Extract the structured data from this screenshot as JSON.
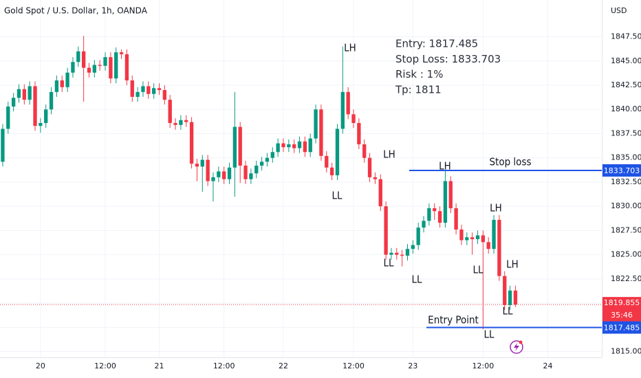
{
  "chart_data": {
    "type": "candlestick",
    "title": "Gold Spot / U.S. Dollar, 1h, OANDA",
    "currency": "USD",
    "up_color": "#089981",
    "down_color": "#f23645",
    "grid": true,
    "x": [
      0,
      1,
      2,
      3,
      4,
      5,
      6,
      7,
      8,
      9,
      10,
      11,
      12,
      13,
      14,
      15,
      16,
      17,
      18,
      19,
      20,
      21,
      22,
      23,
      24,
      25,
      26,
      27,
      28,
      29,
      30,
      31,
      32,
      33,
      34,
      35,
      36,
      37,
      38,
      39,
      40,
      41,
      42,
      43,
      44,
      45,
      46,
      47,
      48,
      49,
      50,
      51,
      52,
      53,
      54,
      55,
      56,
      57,
      58,
      59,
      60,
      61,
      62,
      63,
      64,
      65,
      66,
      67,
      68,
      69,
      70,
      71,
      72,
      73,
      74,
      75,
      76,
      77,
      78,
      79,
      80,
      81,
      82,
      83,
      84,
      85,
      86,
      87,
      88,
      89,
      90,
      91,
      92,
      93,
      94,
      95
    ],
    "open": [
      1834.6,
      1838.0,
      1840.3,
      1841.2,
      1842.1,
      1841.0,
      1842.4,
      1838.3,
      1838.6,
      1840.0,
      1841.8,
      1843.0,
      1842.3,
      1843.8,
      1844.9,
      1846.0,
      1844.3,
      1843.8,
      1844.6,
      1844.5,
      1845.4,
      1843.2,
      1845.9,
      1845.7,
      1843.0,
      1841.3,
      1841.8,
      1842.4,
      1841.6,
      1842.2,
      1842.0,
      1841.0,
      1838.6,
      1838.4,
      1838.9,
      1838.7,
      1834.4,
      1834.1,
      1834.8,
      1832.6,
      1833.0,
      1833.6,
      1832.8,
      1834.0,
      1838.2,
      1834.2,
      1832.8,
      1833.4,
      1834.2,
      1834.6,
      1835.0,
      1835.6,
      1836.5,
      1836.1,
      1836.4,
      1836.0,
      1836.7,
      1835.6,
      1837.0,
      1840.0,
      1835.2,
      1834.0,
      1833.2,
      1838.0,
      1841.8,
      1839.5,
      1838.6,
      1836.4,
      1835.0,
      1833.0,
      1832.8,
      1830.0,
      1825.0,
      1825.2,
      1825.0,
      1824.9,
      1825.6,
      1826.0,
      1827.8,
      1828.5,
      1829.8,
      1829.5,
      1828.3,
      1832.6,
      1829.8,
      1827.6,
      1826.5,
      1826.8,
      1826.6,
      1827.0,
      1826.3,
      1825.6,
      1828.6,
      1822.8,
      1819.8,
      1821.3
    ],
    "high": [
      1838.5,
      1840.8,
      1841.7,
      1842.6,
      1842.6,
      1842.9,
      1842.9,
      1839.1,
      1840.5,
      1842.3,
      1843.5,
      1843.5,
      1844.3,
      1845.4,
      1846.5,
      1847.6,
      1844.8,
      1845.1,
      1845.1,
      1845.9,
      1845.9,
      1846.4,
      1846.2,
      1846.2,
      1843.5,
      1842.3,
      1842.9,
      1842.9,
      1842.7,
      1842.7,
      1842.5,
      1841.5,
      1839.1,
      1839.4,
      1839.4,
      1839.2,
      1834.9,
      1835.3,
      1835.3,
      1833.5,
      1834.1,
      1834.1,
      1834.5,
      1841.8,
      1838.7,
      1834.7,
      1833.9,
      1834.7,
      1835.1,
      1835.5,
      1836.1,
      1837.0,
      1837.0,
      1836.9,
      1836.9,
      1837.2,
      1837.2,
      1837.5,
      1840.5,
      1840.5,
      1835.7,
      1834.5,
      1838.5,
      1846.5,
      1842.3,
      1840.0,
      1839.1,
      1836.9,
      1835.5,
      1833.5,
      1833.3,
      1830.5,
      1825.7,
      1825.7,
      1825.5,
      1826.1,
      1826.5,
      1828.3,
      1829.0,
      1830.3,
      1830.3,
      1830.0,
      1833.7,
      1833.1,
      1830.3,
      1828.1,
      1827.3,
      1827.3,
      1827.5,
      1827.5,
      1826.8,
      1829.1,
      1829.1,
      1823.3,
      1821.8,
      1821.8
    ],
    "low": [
      1834.1,
      1837.5,
      1839.8,
      1840.7,
      1840.5,
      1840.5,
      1837.8,
      1837.6,
      1838.1,
      1839.5,
      1841.3,
      1841.8,
      1841.8,
      1843.3,
      1844.4,
      1840.8,
      1843.3,
      1843.3,
      1844.0,
      1844.0,
      1842.7,
      1842.7,
      1845.2,
      1842.5,
      1840.8,
      1840.8,
      1841.3,
      1841.1,
      1841.1,
      1841.5,
      1840.5,
      1838.1,
      1837.9,
      1837.9,
      1838.2,
      1833.9,
      1832.6,
      1831.5,
      1832.1,
      1830.5,
      1832.5,
      1832.3,
      1832.3,
      1831.0,
      1832.4,
      1832.3,
      1832.3,
      1832.9,
      1833.7,
      1834.1,
      1834.5,
      1835.1,
      1835.6,
      1835.6,
      1835.5,
      1835.5,
      1835.1,
      1835.1,
      1836.5,
      1834.7,
      1833.5,
      1832.7,
      1832.7,
      1837.5,
      1839.0,
      1838.1,
      1835.9,
      1834.5,
      1832.5,
      1832.3,
      1829.5,
      1824.5,
      1824.5,
      1824.5,
      1823.8,
      1824.4,
      1825.1,
      1825.5,
      1827.3,
      1828.0,
      1828.6,
      1827.8,
      1827.8,
      1829.3,
      1827.1,
      1826.0,
      1826.0,
      1825.0,
      1826.1,
      1817.3,
      1825.1,
      1825.1,
      1822.3,
      1819.3,
      1819.3,
      1819.6
    ],
    "close": [
      1838.0,
      1840.3,
      1841.2,
      1842.1,
      1841.0,
      1842.4,
      1838.3,
      1838.6,
      1840.0,
      1841.8,
      1843.0,
      1842.3,
      1843.8,
      1844.9,
      1846.0,
      1844.3,
      1843.8,
      1844.6,
      1844.5,
      1845.4,
      1843.2,
      1845.9,
      1845.7,
      1843.0,
      1841.3,
      1841.8,
      1842.4,
      1841.6,
      1842.2,
      1842.0,
      1841.0,
      1838.6,
      1838.4,
      1838.9,
      1838.7,
      1834.4,
      1834.1,
      1834.8,
      1832.6,
      1833.0,
      1833.6,
      1832.8,
      1834.0,
      1838.2,
      1834.2,
      1832.8,
      1833.4,
      1834.2,
      1834.6,
      1835.0,
      1835.6,
      1836.5,
      1836.1,
      1836.4,
      1836.0,
      1836.7,
      1835.6,
      1837.0,
      1840.0,
      1835.2,
      1834.0,
      1833.2,
      1838.0,
      1841.8,
      1839.5,
      1838.6,
      1836.4,
      1835.0,
      1833.0,
      1832.8,
      1830.0,
      1825.0,
      1825.2,
      1825.0,
      1824.9,
      1825.6,
      1826.0,
      1827.8,
      1828.5,
      1829.8,
      1829.5,
      1828.3,
      1832.6,
      1829.8,
      1827.6,
      1826.5,
      1826.8,
      1826.6,
      1827.0,
      1826.3,
      1825.6,
      1828.6,
      1822.8,
      1819.8,
      1821.3,
      1819.855
    ],
    "xlim": [
      -0.5,
      111
    ],
    "xticks": [
      {
        "value": 7,
        "label": "20"
      },
      {
        "value": 19,
        "label": "12:00"
      },
      {
        "value": 29,
        "label": "21"
      },
      {
        "value": 41,
        "label": "12:00"
      },
      {
        "value": 52,
        "label": "22"
      },
      {
        "value": 65,
        "label": "12:00"
      },
      {
        "value": 76,
        "label": "23"
      },
      {
        "value": 89,
        "label": "12:00"
      },
      {
        "value": 101,
        "label": "24"
      }
    ],
    "ylim": [
      1814.4,
      1851.3
    ],
    "yticks": [
      {
        "value": 1815,
        "label": "1815.000"
      },
      {
        "value": 1817.5,
        "label": "1817.500"
      },
      {
        "value": 1820,
        "label": "1820.000"
      },
      {
        "value": 1822.5,
        "label": "1822.500"
      },
      {
        "value": 1825,
        "label": "1825.000"
      },
      {
        "value": 1827.5,
        "label": "1827.500"
      },
      {
        "value": 1830,
        "label": "1830.000"
      },
      {
        "value": 1832.5,
        "label": "1832.500"
      },
      {
        "value": 1835,
        "label": "1835.000"
      },
      {
        "value": 1837.5,
        "label": "1837.500"
      },
      {
        "value": 1840,
        "label": "1840.000"
      },
      {
        "value": 1842.5,
        "label": "1842.500"
      },
      {
        "value": 1845,
        "label": "1845.000"
      },
      {
        "value": 1847.5,
        "label": "1847.500"
      }
    ],
    "stop_loss": 1833.703,
    "entry": 1817.485,
    "last_price": 1819.855,
    "countdown": "35:46",
    "line_color": "#1e53e5",
    "trade_info": [
      "Entry: 1817.485",
      "Stop Loss: 1833.703",
      "Risk : 1%",
      "Tp: 1811"
    ],
    "annotations": [
      "LH",
      "LL",
      "LH",
      "LH",
      "LL",
      "LL",
      "LH",
      "LL",
      "LH",
      "LL",
      "LL",
      "Stop loss",
      "Entry Point"
    ]
  }
}
